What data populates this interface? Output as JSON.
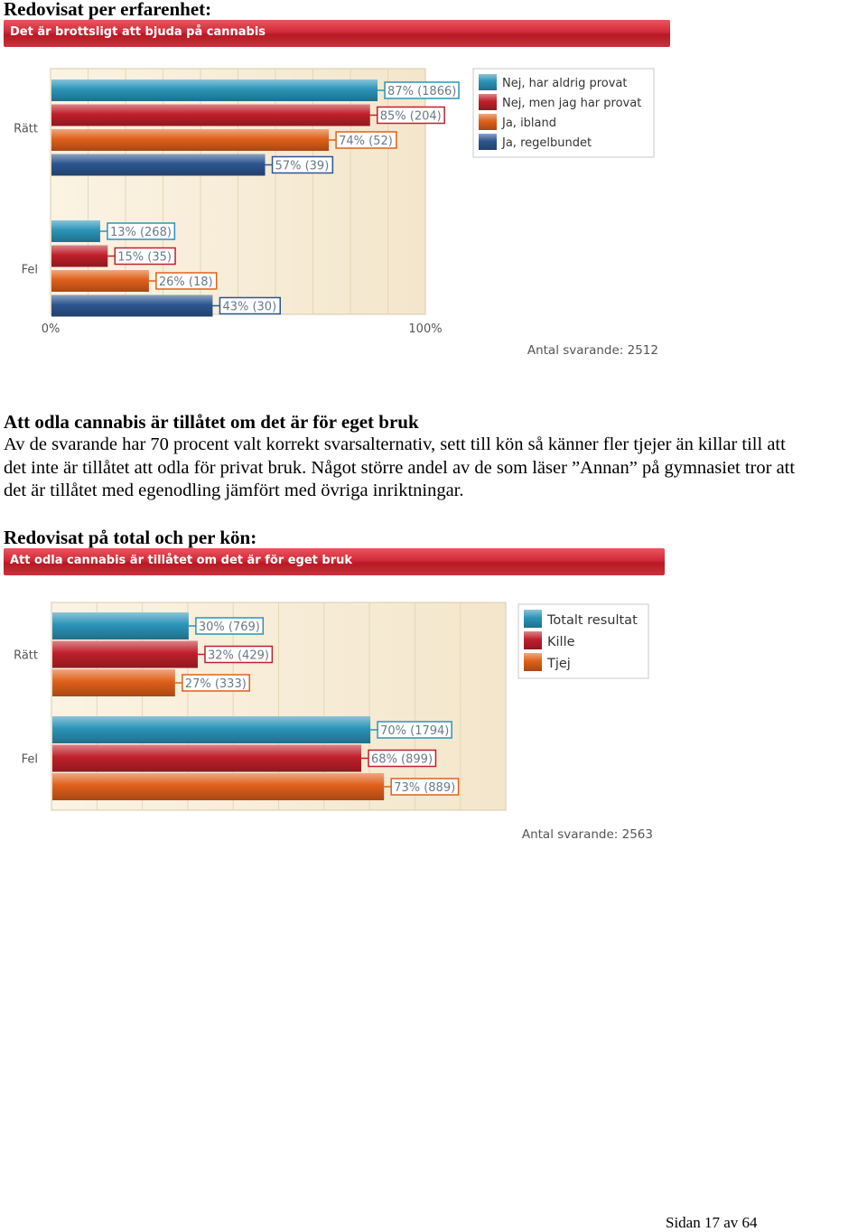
{
  "section1": {
    "heading": "Redovisat per erfarenhet:"
  },
  "section2": {
    "title": "Att odla cannabis är tillåtet om det är för eget bruk",
    "paragraph_lines": [
      "Av de svarande har 70 procent valt korrekt svarsalternativ, sett till kön så känner fler tjejer än killar till att",
      "det inte är tillåtet att odla för privat bruk. Något större andel av de som läser ”Annan” på gymnasiet tror att",
      "det är tillåtet med egenodling jämfört med övriga inriktningar."
    ],
    "heading": "Redovisat på total och per kön:"
  },
  "footer": {
    "page_label": "Sidan 17 av 64"
  },
  "chart_data": [
    {
      "type": "bar",
      "orientation": "horizontal",
      "title": "Det är brottsligt att bjuda på cannabis",
      "categories": [
        "Rätt",
        "Fel"
      ],
      "series": [
        {
          "name": "Nej, har aldrig provat",
          "color": "#2b94b8",
          "values": [
            87,
            13
          ],
          "labels": [
            "87% (1866)",
            "13% (268)"
          ]
        },
        {
          "name": "Nej, men jag har provat",
          "color": "#c0202a",
          "values": [
            85,
            15
          ],
          "labels": [
            "85% (204)",
            "15% (35)"
          ]
        },
        {
          "name": "Ja, ibland",
          "color": "#e0601a",
          "values": [
            74,
            26
          ],
          "labels": [
            "74% (52)",
            "26% (18)"
          ]
        },
        {
          "name": "Ja, regelbundet",
          "color": "#2d5690",
          "values": [
            57,
            43
          ],
          "labels": [
            "57% (39)",
            "43% (30)"
          ]
        }
      ],
      "xlim": [
        0,
        100
      ],
      "x_tick_labels": [
        "0%",
        "100%"
      ],
      "respondents_label": "Antal svarande: 2512",
      "legend_position": "top-right"
    },
    {
      "type": "bar",
      "orientation": "horizontal",
      "title": "Att odla cannabis är tillåtet om det är för eget bruk",
      "categories": [
        "Rätt",
        "Fel"
      ],
      "series": [
        {
          "name": "Totalt resultat",
          "color": "#2b94b8",
          "values": [
            30,
            70
          ],
          "labels": [
            "30% (769)",
            "70% (1794)"
          ]
        },
        {
          "name": "Kille",
          "color": "#c0202a",
          "values": [
            32,
            68
          ],
          "labels": [
            "32% (429)",
            "68% (899)"
          ]
        },
        {
          "name": "Tjej",
          "color": "#e0601a",
          "values": [
            27,
            73
          ],
          "labels": [
            "27% (333)",
            "73% (889)"
          ]
        }
      ],
      "xlim": [
        0,
        100
      ],
      "respondents_label": "Antal svarande: 2563",
      "legend_position": "top-right"
    }
  ]
}
